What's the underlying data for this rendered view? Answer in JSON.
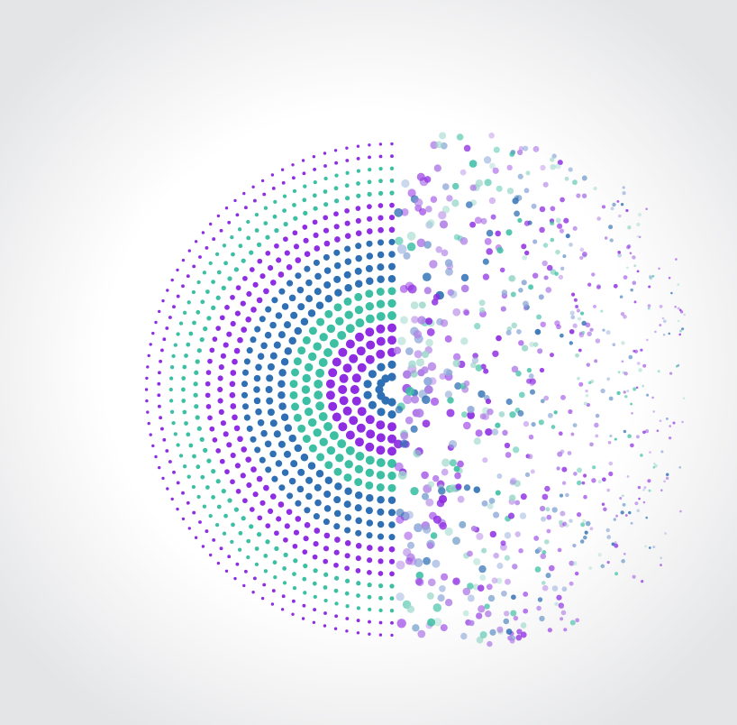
{
  "artwork": {
    "subject": "dispersing-dot-halftone-circle",
    "palette": {
      "purple": "#8e2de2",
      "teal": "#3dbfa4",
      "blue": "#2f6fb4",
      "lavender": "#b07fe6",
      "soft_blue": "#8fa9d9",
      "mint": "#9fd8cc",
      "background_center": "#ffffff",
      "background_edge": "#e4e5e7"
    },
    "ring_color_sequence": [
      "blue",
      "blue",
      "purple",
      "purple",
      "purple",
      "teal",
      "teal",
      "teal",
      "blue",
      "blue",
      "blue",
      "blue",
      "purple",
      "purple",
      "purple",
      "teal",
      "teal",
      "teal",
      "purple",
      "purple"
    ],
    "scatter_colors": [
      "purple",
      "lavender",
      "teal",
      "blue",
      "soft_blue",
      "mint",
      "purple",
      "lavender"
    ]
  }
}
